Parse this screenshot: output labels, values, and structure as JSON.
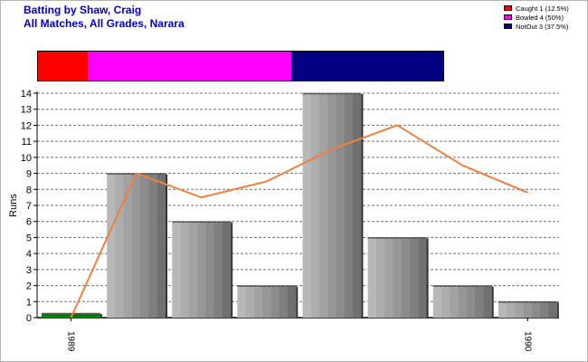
{
  "header": {
    "title_line1": "Batting by Shaw, Craig",
    "title_line2": "All Matches, All Grades, Narara"
  },
  "legend": [
    {
      "label": "Caught 1 (12.5%)",
      "color": "#ff0000"
    },
    {
      "label": "Bowled 4 (50%)",
      "color": "#ff00ff"
    },
    {
      "label": "NotOut 3 (37.5%)",
      "color": "#000080"
    }
  ],
  "dismissals": [
    {
      "name": "Caught",
      "count": 1,
      "share": 0.125,
      "color": "#ff0000"
    },
    {
      "name": "Bowled",
      "count": 4,
      "share": 0.5,
      "color": "#ff00ff"
    },
    {
      "name": "NotOut",
      "count": 3,
      "share": 0.375,
      "color": "#000080"
    }
  ],
  "chart_data": {
    "type": "bar",
    "ylabel": "Runs",
    "ylim": [
      0,
      14
    ],
    "yticks": [
      0,
      1,
      2,
      3,
      4,
      5,
      6,
      7,
      8,
      9,
      10,
      11,
      12,
      13,
      14
    ],
    "x_tick_labels": [
      {
        "index": 0,
        "label": "1989"
      },
      {
        "index": 7,
        "label": "1990"
      }
    ],
    "grid": true,
    "bars": {
      "values": [
        0,
        9,
        6,
        2,
        14,
        5,
        2,
        1
      ],
      "colors": [
        "#008000",
        "#a8a8a8",
        "#a8a8a8",
        "#a8a8a8",
        "#a8a8a8",
        "#a8a8a8",
        "#a8a8a8",
        "#a8a8a8"
      ]
    },
    "line": {
      "values": [
        0,
        9,
        7.5,
        8.5,
        10.5,
        12,
        9.5,
        7.8
      ],
      "color": "#f08040"
    }
  }
}
